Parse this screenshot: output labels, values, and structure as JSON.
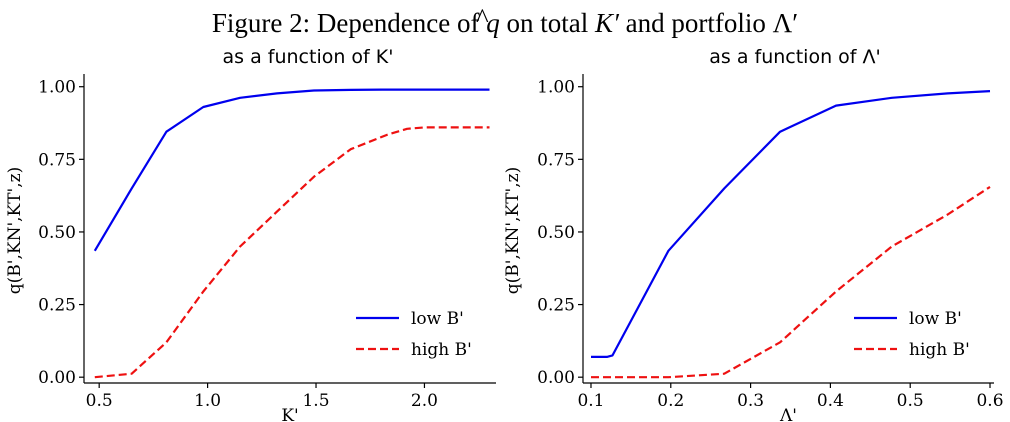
{
  "figure": {
    "title_prefix": "Figure 2: Dependence of ",
    "title_q": "q",
    "title_hat": "^",
    "title_mid": " on total ",
    "title_K": "K′",
    "title_and": " and portfolio ",
    "title_L": "Λ′"
  },
  "chart_data": [
    {
      "type": "line",
      "title": "as a function of K'",
      "xlabel": "K'",
      "ylabel": "q(B',KN',KT',z)",
      "xlim": [
        0.43,
        2.33
      ],
      "ylim": [
        -0.02,
        1.03
      ],
      "xticks": [
        0.5,
        1.0,
        1.5,
        2.0
      ],
      "xtick_labels": [
        "0.5",
        "1.0",
        "1.5",
        "2.0"
      ],
      "yticks": [
        0.0,
        0.25,
        0.5,
        0.75,
        1.0
      ],
      "ytick_labels": [
        "0.00",
        "0.25",
        "0.50",
        "0.75",
        "1.00"
      ],
      "grid": false,
      "legend_position": "lower-right",
      "series": [
        {
          "name": "low B'",
          "color": "#0000ee",
          "style": "solid",
          "x": [
            0.48,
            0.65,
            0.81,
            0.98,
            1.15,
            1.32,
            1.49,
            1.66,
            1.83,
            2.0,
            2.17,
            2.3
          ],
          "y": [
            0.435,
            0.65,
            0.845,
            0.93,
            0.962,
            0.977,
            0.987,
            0.989,
            0.99,
            0.99,
            0.99,
            0.99
          ]
        },
        {
          "name": "high B'",
          "color": "#ee1111",
          "style": "dashed",
          "x": [
            0.48,
            0.65,
            0.81,
            0.98,
            1.15,
            1.32,
            1.49,
            1.66,
            1.83,
            1.92,
            2.0,
            2.17,
            2.3
          ],
          "y": [
            0.0,
            0.012,
            0.12,
            0.295,
            0.45,
            0.57,
            0.69,
            0.785,
            0.835,
            0.855,
            0.86,
            0.86,
            0.86
          ]
        }
      ]
    },
    {
      "type": "line",
      "title": "as a function of Λ'",
      "xlabel": "Λ'",
      "ylabel": "q(B',KN',KT',z)",
      "xlim": [
        0.09,
        0.605
      ],
      "ylim": [
        -0.02,
        1.03
      ],
      "xticks": [
        0.1,
        0.2,
        0.3,
        0.4,
        0.5,
        0.6
      ],
      "xtick_labels": [
        "0.1",
        "0.2",
        "0.3",
        "0.4",
        "0.5",
        "0.6"
      ],
      "yticks": [
        0.0,
        0.25,
        0.5,
        0.75,
        1.0
      ],
      "ytick_labels": [
        "0.00",
        "0.25",
        "0.50",
        "0.75",
        "1.00"
      ],
      "grid": false,
      "legend_position": "lower-right",
      "series": [
        {
          "name": "low B'",
          "color": "#0000ee",
          "style": "solid",
          "x": [
            0.1,
            0.12,
            0.127,
            0.197,
            0.267,
            0.337,
            0.407,
            0.477,
            0.547,
            0.6
          ],
          "y": [
            0.07,
            0.07,
            0.075,
            0.435,
            0.65,
            0.845,
            0.935,
            0.962,
            0.977,
            0.985
          ]
        },
        {
          "name": "high B'",
          "color": "#ee1111",
          "style": "dashed",
          "x": [
            0.1,
            0.197,
            0.267,
            0.337,
            0.407,
            0.477,
            0.547,
            0.6
          ],
          "y": [
            0.0,
            0.0,
            0.012,
            0.12,
            0.295,
            0.45,
            0.56,
            0.655
          ]
        }
      ]
    }
  ]
}
